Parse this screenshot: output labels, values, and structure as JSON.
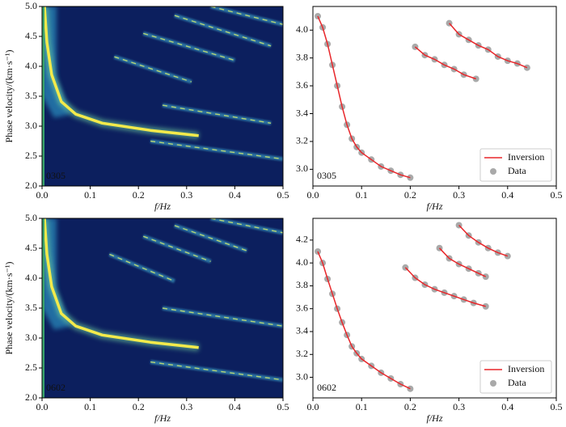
{
  "chart_data": [
    {
      "type": "heatmap",
      "xlabel": "f/Hz",
      "ylabel": "Phase velocity/(km·s⁻¹)",
      "annotation": "0305",
      "xlim": [
        0,
        0.5
      ],
      "xticks": [
        {
          "value": 0,
          "label": "0.0"
        },
        0.1,
        0.2,
        0.3,
        0.4,
        0.5
      ],
      "ylim": [
        2,
        5
      ],
      "yticks": [
        {
          "value": 2,
          "label": "2.0"
        },
        2.5,
        {
          "value": 3,
          "label": "3.0"
        },
        3.5,
        {
          "value": 4,
          "label": "4.0"
        },
        4.5,
        {
          "value": 5,
          "label": "5.0"
        }
      ]
    },
    {
      "type": "line",
      "xlabel": "f/Hz",
      "annotation": "0305",
      "legend": "lower right",
      "xlim": [
        0,
        0.5
      ],
      "xticks": [
        {
          "value": 0,
          "label": "0.0"
        },
        0.1,
        0.2,
        0.3,
        0.4,
        0.5
      ],
      "ylim": [
        2.88,
        4.17
      ],
      "yticks": [
        {
          "value": 3,
          "label": "3.0"
        },
        3.2,
        3.4,
        3.6,
        3.8,
        {
          "value": 4,
          "label": "4.0"
        }
      ],
      "series": [
        {
          "name": "Inversion",
          "color": "#e8262a",
          "marker": "line",
          "segments": [
            {
              "x": [
                0.01,
                0.02,
                0.03,
                0.04,
                0.05,
                0.06,
                0.07,
                0.08,
                0.09,
                0.1,
                0.12,
                0.14,
                0.16,
                0.18,
                0.2
              ],
              "values": [
                4.1,
                4.02,
                3.9,
                3.75,
                3.6,
                3.45,
                3.32,
                3.22,
                3.16,
                3.12,
                3.07,
                3.02,
                2.99,
                2.96,
                2.94
              ]
            },
            {
              "x": [
                0.21,
                0.23,
                0.25,
                0.27,
                0.29,
                0.31,
                0.335
              ],
              "values": [
                3.88,
                3.82,
                3.79,
                3.75,
                3.72,
                3.68,
                3.65
              ]
            },
            {
              "x": [
                0.28,
                0.3,
                0.32,
                0.34,
                0.36,
                0.38,
                0.4,
                0.42,
                0.44
              ],
              "values": [
                4.05,
                3.97,
                3.93,
                3.89,
                3.86,
                3.81,
                3.78,
                3.76,
                3.73
              ]
            }
          ]
        },
        {
          "name": "Data",
          "color": "#8c8c8c",
          "marker": "circle",
          "segments": [
            {
              "x": [
                0.01,
                0.02,
                0.03,
                0.04,
                0.05,
                0.06,
                0.07,
                0.08,
                0.09,
                0.1,
                0.12,
                0.14,
                0.16,
                0.18,
                0.2
              ],
              "values": [
                4.1,
                4.02,
                3.9,
                3.75,
                3.6,
                3.45,
                3.32,
                3.22,
                3.16,
                3.12,
                3.07,
                3.02,
                2.99,
                2.96,
                2.94
              ]
            },
            {
              "x": [
                0.21,
                0.23,
                0.25,
                0.27,
                0.29,
                0.31,
                0.335
              ],
              "values": [
                3.88,
                3.82,
                3.79,
                3.75,
                3.72,
                3.68,
                3.65
              ]
            },
            {
              "x": [
                0.28,
                0.3,
                0.32,
                0.34,
                0.36,
                0.38,
                0.4,
                0.42,
                0.44
              ],
              "values": [
                4.05,
                3.97,
                3.93,
                3.89,
                3.86,
                3.81,
                3.78,
                3.76,
                3.73
              ]
            }
          ]
        }
      ]
    },
    {
      "type": "heatmap",
      "xlabel": "f/Hz",
      "ylabel": "Phase velocity/(km·s⁻¹)",
      "annotation": "0602",
      "xlim": [
        0,
        0.5
      ],
      "xticks": [
        {
          "value": 0,
          "label": "0.0"
        },
        0.1,
        0.2,
        0.3,
        0.4,
        0.5
      ],
      "ylim": [
        2,
        5
      ],
      "yticks": [
        {
          "value": 2,
          "label": "2.0"
        },
        2.5,
        {
          "value": 3,
          "label": "3.0"
        },
        3.5,
        {
          "value": 4,
          "label": "4.0"
        },
        4.5,
        {
          "value": 5,
          "label": "5.0"
        }
      ]
    },
    {
      "type": "line",
      "xlabel": "f/Hz",
      "annotation": "0602",
      "legend": "lower right",
      "xlim": [
        0,
        0.5
      ],
      "xticks": [
        {
          "value": 0,
          "label": "0.0"
        },
        0.1,
        0.2,
        0.3,
        0.4,
        0.5
      ],
      "ylim": [
        2.82,
        4.39
      ],
      "yticks": [
        {
          "value": 3,
          "label": "3.0"
        },
        3.2,
        3.4,
        3.6,
        3.8,
        {
          "value": 4,
          "label": "4.0"
        },
        4.2
      ],
      "series": [
        {
          "name": "Inversion",
          "color": "#e8262a",
          "marker": "line",
          "segments": [
            {
              "x": [
                0.01,
                0.02,
                0.03,
                0.04,
                0.05,
                0.06,
                0.07,
                0.08,
                0.09,
                0.1,
                0.12,
                0.14,
                0.16,
                0.18,
                0.2
              ],
              "values": [
                4.1,
                4.0,
                3.86,
                3.73,
                3.6,
                3.48,
                3.37,
                3.27,
                3.21,
                3.16,
                3.1,
                3.04,
                2.99,
                2.94,
                2.9
              ]
            },
            {
              "x": [
                0.19,
                0.21,
                0.23,
                0.25,
                0.27,
                0.29,
                0.31,
                0.33,
                0.355
              ],
              "values": [
                3.96,
                3.87,
                3.81,
                3.77,
                3.74,
                3.71,
                3.68,
                3.65,
                3.62
              ]
            },
            {
              "x": [
                0.26,
                0.28,
                0.3,
                0.32,
                0.34,
                0.355
              ],
              "values": [
                4.13,
                4.04,
                3.99,
                3.95,
                3.91,
                3.88
              ]
            },
            {
              "x": [
                0.3,
                0.32,
                0.34,
                0.36,
                0.38,
                0.4
              ],
              "values": [
                4.33,
                4.24,
                4.18,
                4.13,
                4.09,
                4.06
              ]
            }
          ]
        },
        {
          "name": "Data",
          "color": "#8c8c8c",
          "marker": "circle",
          "segments": [
            {
              "x": [
                0.01,
                0.02,
                0.03,
                0.04,
                0.05,
                0.06,
                0.07,
                0.08,
                0.09,
                0.1,
                0.12,
                0.14,
                0.16,
                0.18,
                0.2
              ],
              "values": [
                4.1,
                4.0,
                3.86,
                3.73,
                3.6,
                3.48,
                3.37,
                3.27,
                3.21,
                3.16,
                3.1,
                3.04,
                2.99,
                2.94,
                2.9
              ]
            },
            {
              "x": [
                0.19,
                0.21,
                0.23,
                0.25,
                0.27,
                0.29,
                0.31,
                0.33,
                0.355
              ],
              "values": [
                3.96,
                3.87,
                3.81,
                3.77,
                3.74,
                3.71,
                3.68,
                3.65,
                3.62
              ]
            },
            {
              "x": [
                0.26,
                0.28,
                0.3,
                0.32,
                0.34,
                0.355
              ],
              "values": [
                4.13,
                4.04,
                3.99,
                3.95,
                3.91,
                3.88
              ]
            },
            {
              "x": [
                0.3,
                0.32,
                0.34,
                0.36,
                0.38,
                0.4
              ],
              "values": [
                4.33,
                4.24,
                4.18,
                4.13,
                4.09,
                4.06
              ]
            }
          ]
        }
      ]
    }
  ]
}
